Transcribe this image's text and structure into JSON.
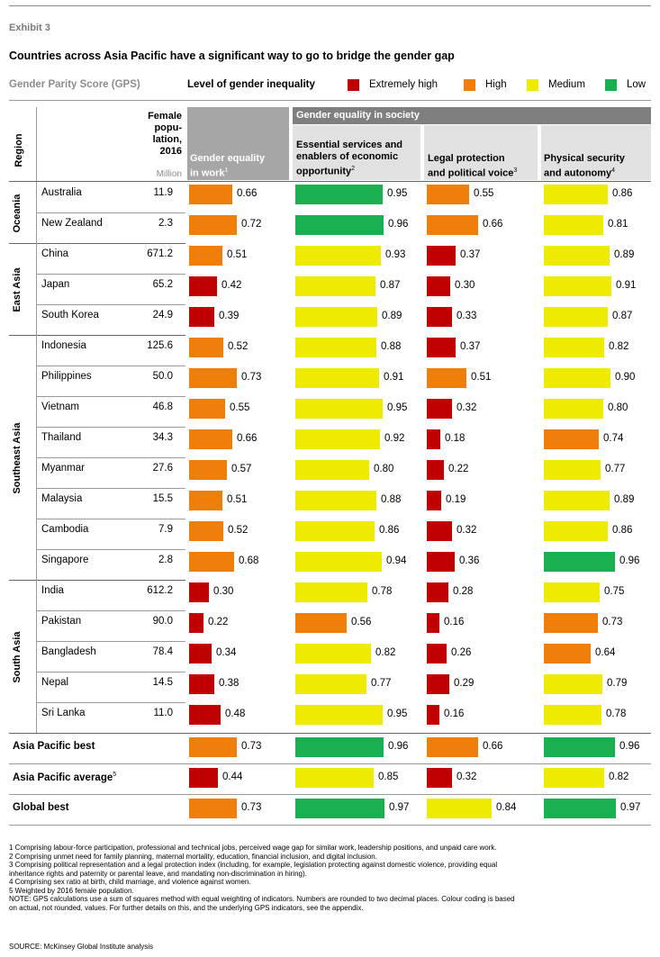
{
  "header": {
    "exhibit": "Exhibit 3",
    "title": "Countries across Asia Pacific have a significant way to go to bridge the gender gap",
    "gps_label": "Gender Parity Score (GPS)",
    "level_label": "Level of gender inequality"
  },
  "legend": [
    {
      "label": "Extremely high",
      "color": "#c00000"
    },
    {
      "label": "High",
      "color": "#f07f0a"
    },
    {
      "label": "Medium",
      "color": "#eeea00"
    },
    {
      "label": "Low",
      "color": "#18b050"
    }
  ],
  "colors": {
    "extremely_high": "#c00000",
    "high": "#f07f0a",
    "medium": "#eeea00",
    "low": "#18b050"
  },
  "table_head": {
    "region": "Region",
    "female_pop": [
      "Female",
      "popu-",
      "lation,",
      "2016"
    ],
    "million": "Million",
    "society_group": "Gender equality in society",
    "work": {
      "line1": "Gender equality",
      "line2": "in work",
      "note": "1"
    },
    "essential": {
      "line1": "Essential services and",
      "line2": "enablers of economic",
      "line3": "opportunity",
      "note": "2"
    },
    "legal": {
      "line1": "Legal protection",
      "line2": "and political voice",
      "note": "3"
    },
    "security": {
      "line1": "Physical security",
      "line2": "and autonomy",
      "note": "4"
    }
  },
  "regions": [
    {
      "name": "Oceania",
      "rows": [
        0,
        1
      ]
    },
    {
      "name": "East Asia",
      "rows": [
        2,
        4
      ]
    },
    {
      "name": "Southeast Asia",
      "rows": [
        5,
        12
      ]
    },
    {
      "name": "South Asia",
      "rows": [
        13,
        17
      ]
    }
  ],
  "chart_data": {
    "type": "table",
    "title": "Countries across Asia Pacific have a significant way to go to bridge the gender gap",
    "columns": [
      "Gender equality in work",
      "Essential services and enablers of economic opportunity",
      "Legal protection and political voice",
      "Physical security and autonomy"
    ],
    "scale_max": 1.0,
    "rows": [
      {
        "country": "Australia",
        "pop": "11.9",
        "values": [
          0.66,
          0.95,
          0.55,
          0.86
        ],
        "levels": [
          "high",
          "low",
          "high",
          "medium"
        ]
      },
      {
        "country": "New Zealand",
        "pop": "2.3",
        "values": [
          0.72,
          0.96,
          0.66,
          0.81
        ],
        "levels": [
          "high",
          "low",
          "high",
          "medium"
        ]
      },
      {
        "country": "China",
        "pop": "671.2",
        "values": [
          0.51,
          0.93,
          0.37,
          0.89
        ],
        "levels": [
          "high",
          "medium",
          "extremely_high",
          "medium"
        ]
      },
      {
        "country": "Japan",
        "pop": "65.2",
        "values": [
          0.42,
          0.87,
          0.3,
          0.91
        ],
        "levels": [
          "extremely_high",
          "medium",
          "extremely_high",
          "medium"
        ]
      },
      {
        "country": "South Korea",
        "pop": "24.9",
        "values": [
          0.39,
          0.89,
          0.33,
          0.87
        ],
        "levels": [
          "extremely_high",
          "medium",
          "extremely_high",
          "medium"
        ]
      },
      {
        "country": "Indonesia",
        "pop": "125.6",
        "values": [
          0.52,
          0.88,
          0.37,
          0.82
        ],
        "levels": [
          "high",
          "medium",
          "extremely_high",
          "medium"
        ]
      },
      {
        "country": "Philippines",
        "pop": "50.0",
        "values": [
          0.73,
          0.91,
          0.51,
          0.9
        ],
        "levels": [
          "high",
          "medium",
          "high",
          "medium"
        ]
      },
      {
        "country": "Vietnam",
        "pop": "46.8",
        "values": [
          0.55,
          0.95,
          0.32,
          0.8
        ],
        "levels": [
          "high",
          "medium",
          "extremely_high",
          "medium"
        ]
      },
      {
        "country": "Thailand",
        "pop": "34.3",
        "values": [
          0.66,
          0.92,
          0.18,
          0.74
        ],
        "levels": [
          "high",
          "medium",
          "extremely_high",
          "high"
        ]
      },
      {
        "country": "Myanmar",
        "pop": "27.6",
        "values": [
          0.57,
          0.8,
          0.22,
          0.77
        ],
        "levels": [
          "high",
          "medium",
          "extremely_high",
          "medium"
        ]
      },
      {
        "country": "Malaysia",
        "pop": "15.5",
        "values": [
          0.51,
          0.88,
          0.19,
          0.89
        ],
        "levels": [
          "high",
          "medium",
          "extremely_high",
          "medium"
        ]
      },
      {
        "country": "Cambodia",
        "pop": "7.9",
        "values": [
          0.52,
          0.86,
          0.32,
          0.86
        ],
        "levels": [
          "high",
          "medium",
          "extremely_high",
          "medium"
        ]
      },
      {
        "country": "Singapore",
        "pop": "2.8",
        "values": [
          0.68,
          0.94,
          0.36,
          0.96
        ],
        "levels": [
          "high",
          "medium",
          "extremely_high",
          "low"
        ]
      },
      {
        "country": "India",
        "pop": "612.2",
        "values": [
          0.3,
          0.78,
          0.28,
          0.75
        ],
        "levels": [
          "extremely_high",
          "medium",
          "extremely_high",
          "medium"
        ]
      },
      {
        "country": "Pakistan",
        "pop": "90.0",
        "values": [
          0.22,
          0.56,
          0.16,
          0.73
        ],
        "levels": [
          "extremely_high",
          "high",
          "extremely_high",
          "high"
        ]
      },
      {
        "country": "Bangladesh",
        "pop": "78.4",
        "values": [
          0.34,
          0.82,
          0.26,
          0.64
        ],
        "levels": [
          "extremely_high",
          "medium",
          "extremely_high",
          "high"
        ]
      },
      {
        "country": "Nepal",
        "pop": "14.5",
        "values": [
          0.38,
          0.77,
          0.29,
          0.79
        ],
        "levels": [
          "extremely_high",
          "medium",
          "extremely_high",
          "medium"
        ]
      },
      {
        "country": "Sri Lanka",
        "pop": "11.0",
        "values": [
          0.48,
          0.95,
          0.16,
          0.78
        ],
        "levels": [
          "extremely_high",
          "medium",
          "extremely_high",
          "medium"
        ]
      }
    ],
    "summary": [
      {
        "label": "Asia Pacific best",
        "note": "",
        "values": [
          0.73,
          0.96,
          0.66,
          0.96
        ],
        "levels": [
          "high",
          "low",
          "high",
          "low"
        ]
      },
      {
        "label": "Asia Pacific average",
        "note": "5",
        "values": [
          0.44,
          0.85,
          0.32,
          0.82
        ],
        "levels": [
          "extremely_high",
          "medium",
          "extremely_high",
          "medium"
        ]
      },
      {
        "label": "Global best",
        "note": "",
        "values": [
          0.73,
          0.97,
          0.84,
          0.97
        ],
        "levels": [
          "high",
          "low",
          "medium",
          "low"
        ]
      }
    ]
  },
  "footnotes": [
    "1  Comprising labour-force participation, professional and technical jobs, perceived wage gap for similar work, leadership positions, and unpaid care work.",
    "2  Comprising unmet need for family planning, maternal mortality, education, financial inclusion, and digital inclusion.",
    "3  Comprising political representation and a legal protection index (including, for example, legislation protecting against domestic violence, providing equal",
    "    inheritance rights and paternity or parental leave, and mandating non-discrimination in hiring).",
    "4  Comprising sex ratio at birth, child marriage, and violence against women.",
    "5  Weighted by 2016 female population.",
    "NOTE: GPS calculations use a sum of squares method with equal weighting of indicators. Numbers are rounded to two decimal places. Colour coding is based",
    "    on actual, not rounded, values. For further details on this, and the underlying GPS indicators, see the appendix."
  ],
  "source": "SOURCE:  McKinsey Global Institute analysis"
}
